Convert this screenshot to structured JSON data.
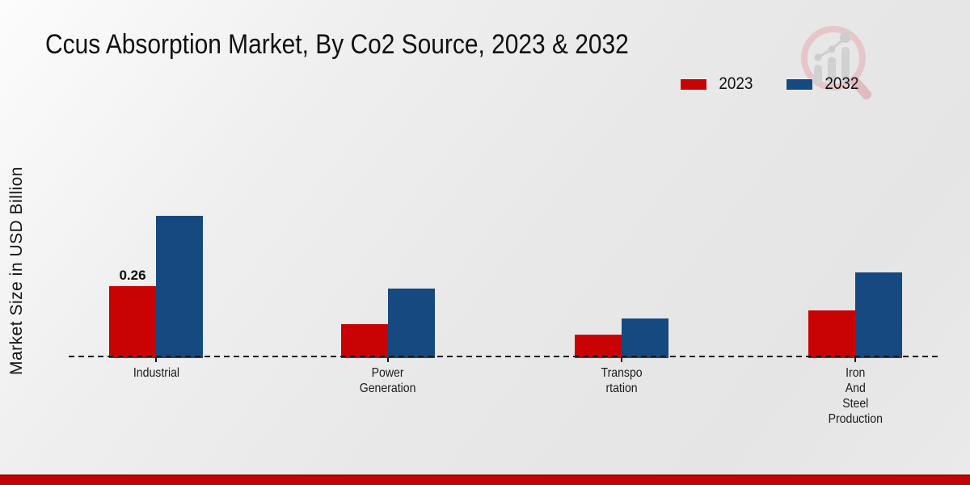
{
  "header": {
    "title": "Ccus Absorption Market, By Co2 Source, 2023 & 2032"
  },
  "y_axis": {
    "label": "Market Size in USD Billion"
  },
  "legend": {
    "items": [
      {
        "label": "2023",
        "color": "#c90303"
      },
      {
        "label": "2032",
        "color": "#15497f"
      }
    ]
  },
  "footer": {
    "accent_color": "#c10404"
  },
  "watermark": {
    "name": "market-research-logo",
    "circle_color": "#e6c3c7",
    "bars_color": "#cfcfcf"
  },
  "chart_data": {
    "type": "bar",
    "title": "Ccus Absorption Market, By Co2 Source, 2023 & 2032",
    "xlabel": "",
    "ylabel": "Market Size in USD Billion",
    "categories": [
      "Industrial",
      "Power Generation",
      "Transportation",
      "Iron And Steel Production"
    ],
    "category_label_lines": [
      "Industrial",
      "Power\nGeneration",
      "Transpo\nrtation",
      "Iron\nAnd\nSteel\nProduction"
    ],
    "series": [
      {
        "name": "2023",
        "color": "#c90303",
        "values": [
          0.26,
          0.12,
          0.08,
          0.17
        ],
        "data_labels": [
          "0.26",
          "",
          "",
          ""
        ]
      },
      {
        "name": "2032",
        "color": "#15497f",
        "values": [
          0.52,
          0.25,
          0.14,
          0.31
        ],
        "data_labels": [
          "",
          "",
          "",
          ""
        ]
      }
    ],
    "ylim": [
      0,
      0.6
    ],
    "grid": false,
    "legend_position": "top-right",
    "baseline_style": "dashed",
    "y_ticks_visible": false
  }
}
